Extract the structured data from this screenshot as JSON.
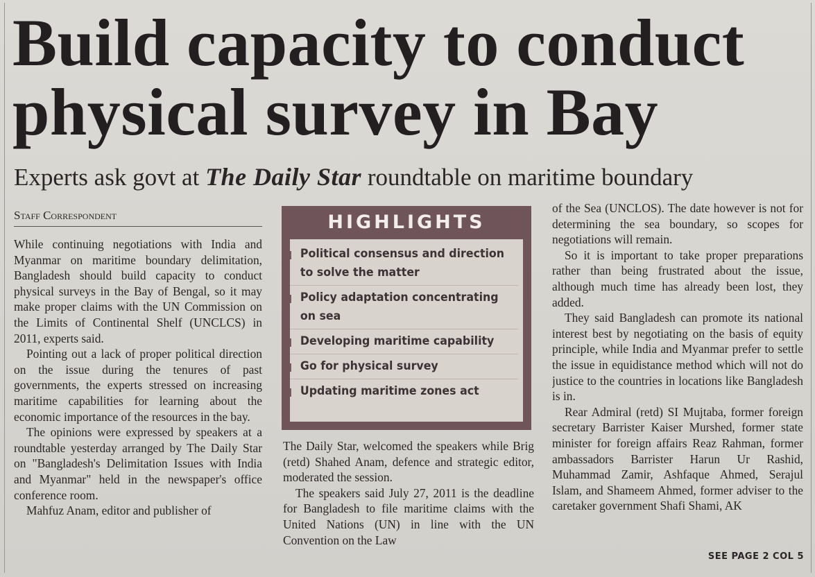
{
  "headline": "Build capacity to conduct physical survey in Bay",
  "subheadline": {
    "before": "Experts ask govt at",
    "masthead": "The Daily Star",
    "after": "roundtable on maritime boundary"
  },
  "byline": "Staff Correspondent",
  "columns": [
    [
      "While continuing negotiations with India and Myanmar on maritime boundary delimitation, Bangladesh should build capacity to conduct physical surveys in the Bay of Bengal, so it may make proper claims with the UN Commission on the Limits of Continental Shelf (UNCLCS) in 2011, experts said.",
      "Pointing out a lack of proper political direction on the issue during the tenures of past governments, the experts stressed on increasing maritime capabilities for learning about the economic importance of the resources in the bay.",
      "The opinions were expressed by speakers at a roundtable yesterday arranged by The Daily Star on \"Bangladesh's Delimitation Issues with India and Myanmar\" held in the newspaper's office conference room.",
      "Mahfuz Anam, editor and publisher of"
    ],
    [
      "The Daily Star, welcomed the speakers while Brig (retd) Shahed Anam, defence and strategic editor, moderated the session.",
      "The speakers said July 27, 2011 is the deadline for Bangladesh to file maritime claims with the United Nations (UN) in line with the UN Convention on the Law"
    ],
    [
      "of the Sea (UNCLOS). The date however is not for determining the sea boundary, so scopes for negotiations will remain.",
      "So it is important to take proper preparations rather than being frustrated about the issue, although much time has already been lost, they added.",
      "They said Bangladesh can promote its national interest best by negotiating on the basis of equity principle, while India and Myanmar prefer to settle the issue in equidistance method which will not do justice to the countries in locations like Bangladesh is in.",
      "Rear Admiral (retd) SI Mujtaba, former foreign secretary Barrister Kaiser Murshed, former state minister for foreign affairs Reaz Rahman, former ambassadors Barrister Harun Ur Rashid, Muhammad Zamir, Ashfaque Ahmed, Serajul Islam, and Shameem Ahmed, former adviser to the caretaker government Shafi Shami, AK"
    ]
  ],
  "highlights": {
    "title": "HIGHLIGHTS",
    "items": [
      "Political consensus and direction to solve the matter",
      "Policy adaptation concentrating on sea",
      "Developing maritime capability",
      "Go for physical survey",
      "Updating maritime zones act"
    ]
  },
  "jump": "SEE PAGE 2 COL 5"
}
